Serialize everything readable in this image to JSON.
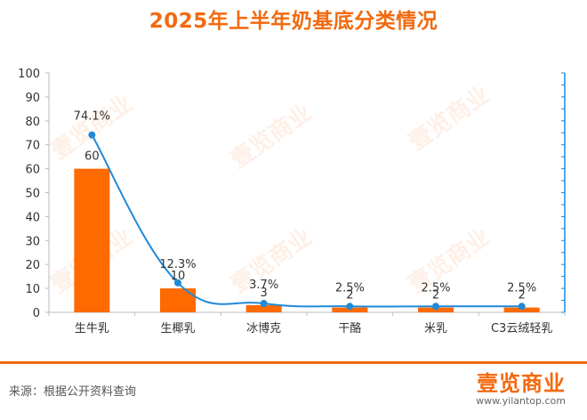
{
  "title": "2025年上半年奶基底分类情况",
  "source": "来源：根据公开资料查询",
  "brand": {
    "logo": "壹览商业",
    "url": "www.yilantop.com",
    "watermark": "壹览商业"
  },
  "colors": {
    "bar": "#ff6a00",
    "line": "#1f8ad8",
    "title": "#f26a10",
    "axis": "#bbbbbb"
  },
  "chart_data": {
    "type": "bar",
    "title": "2025年上半年奶基底分类情况",
    "categories": [
      "生牛乳",
      "生椰乳",
      "冰博克",
      "干酪",
      "米乳",
      "C3云绒轻乳"
    ],
    "series": [
      {
        "type": "bar",
        "values": [
          60,
          10,
          3,
          2,
          2,
          2
        ],
        "labels": [
          "60",
          "10",
          "3",
          "2",
          "2",
          "2"
        ]
      },
      {
        "type": "line",
        "axis": "right",
        "values": [
          74.1,
          12.3,
          3.7,
          2.5,
          2.5,
          2.5
        ],
        "labels": [
          "74.1%",
          "12.3%",
          "3.7%",
          "2.5%",
          "2.5%",
          "2.5%"
        ]
      }
    ],
    "ylim": [
      0,
      100
    ],
    "yticks": [
      "0",
      "10",
      "20",
      "30",
      "40",
      "50",
      "60",
      "70",
      "80",
      "90",
      "100"
    ],
    "right_axis": "unlabeled",
    "grid": false,
    "legend": "none"
  }
}
